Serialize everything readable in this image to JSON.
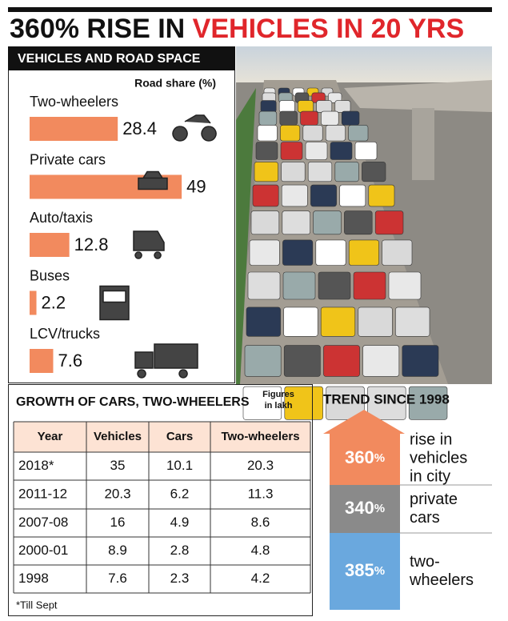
{
  "title": {
    "part1": "360% RISE IN",
    "part2": "VEHICLES IN 20 YRS"
  },
  "chart_data": {
    "type": "bar",
    "orientation": "horizontal",
    "title": "VEHICLES AND ROAD SPACE",
    "value_axis_label": "Road share (%)",
    "categories": [
      "Two-wheelers",
      "Private cars",
      "Auto/taxis",
      "Buses",
      "LCV/trucks"
    ],
    "values": [
      28.4,
      49,
      12.8,
      2.2,
      7.6
    ],
    "color": "#f28a5e"
  },
  "table": {
    "title": "GROWTH OF CARS, TWO-WHEELERS",
    "note": [
      "Figures",
      "in lakh"
    ],
    "columns": [
      "Year",
      "Vehicles",
      "Cars",
      "Two-wheelers"
    ],
    "rows": [
      [
        "2018*",
        35,
        10.1,
        20.3
      ],
      [
        "2011-12",
        20.3,
        6.2,
        11.3
      ],
      [
        "2007-08",
        16,
        4.9,
        8.6
      ],
      [
        "2000-01",
        8.9,
        2.8,
        4.8
      ],
      [
        "1998",
        7.6,
        2.3,
        4.2
      ]
    ],
    "footnote": "*Till Sept"
  },
  "trend": {
    "title": "TREND SINCE 1998",
    "items": [
      {
        "value": 360,
        "unit": "%",
        "label": [
          "rise in",
          "vehicles",
          "in city"
        ],
        "color": "#f28a5e"
      },
      {
        "value": 340,
        "unit": "%",
        "label": [
          "private",
          "cars"
        ],
        "color": "#8a8a8a"
      },
      {
        "value": 385,
        "unit": "%",
        "label": [
          "two-",
          "wheelers"
        ],
        "color": "#6aa8de"
      }
    ]
  }
}
